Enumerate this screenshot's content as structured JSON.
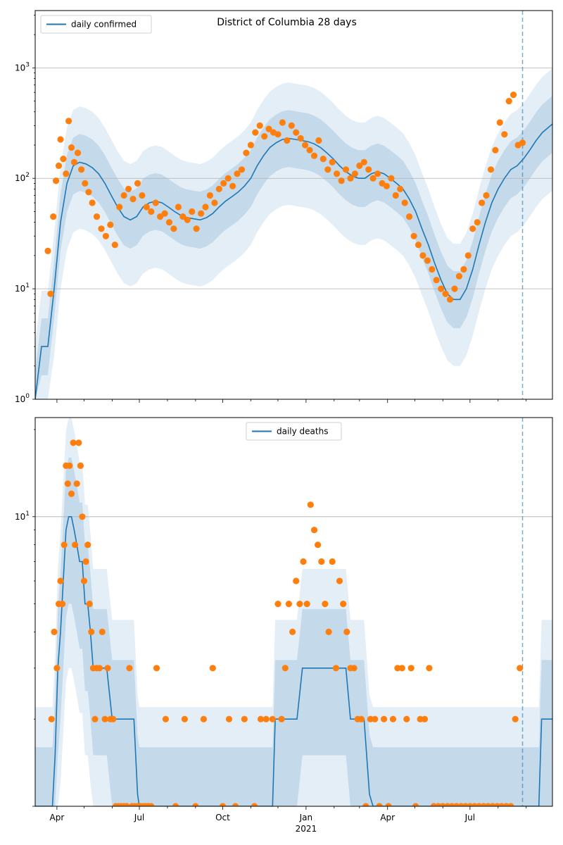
{
  "colors": {
    "line": "#1f77b4",
    "points": "#ff7f0e",
    "band": "#1f77b4",
    "grid": "#b0b0b0",
    "vline": "#1f77b4"
  },
  "chart_data": [
    {
      "type": "line",
      "title": "District of Columbia 28 days",
      "legend_label": "daily confirmed",
      "legend_position": "top-left",
      "yscale": "log",
      "ylim": [
        1,
        3300
      ],
      "xlim": [
        "2020-03-08",
        "2021-09-30"
      ],
      "y_ticks": [
        {
          "value": 1,
          "base": "10",
          "exp": "0"
        },
        {
          "value": 10,
          "base": "10",
          "exp": "1"
        },
        {
          "value": 100,
          "base": "10",
          "exp": "2"
        },
        {
          "value": 1000,
          "base": "10",
          "exp": "3"
        }
      ],
      "grid": "y-major",
      "vline_date": "2021-08-28",
      "series_line": {
        "name": "daily confirmed",
        "x": [
          "2020-03-08",
          "2020-03-15",
          "2020-03-22",
          "2020-03-29",
          "2020-04-05",
          "2020-04-12",
          "2020-04-19",
          "2020-04-26",
          "2020-05-03",
          "2020-05-10",
          "2020-05-17",
          "2020-05-24",
          "2020-05-31",
          "2020-06-07",
          "2020-06-14",
          "2020-06-21",
          "2020-06-28",
          "2020-07-05",
          "2020-07-12",
          "2020-07-19",
          "2020-07-26",
          "2020-08-02",
          "2020-08-09",
          "2020-08-16",
          "2020-08-23",
          "2020-08-30",
          "2020-09-06",
          "2020-09-13",
          "2020-09-20",
          "2020-09-27",
          "2020-10-04",
          "2020-10-11",
          "2020-10-18",
          "2020-10-25",
          "2020-11-01",
          "2020-11-08",
          "2020-11-15",
          "2020-11-22",
          "2020-11-29",
          "2020-12-06",
          "2020-12-13",
          "2020-12-20",
          "2020-12-27",
          "2021-01-03",
          "2021-01-10",
          "2021-01-17",
          "2021-01-24",
          "2021-01-31",
          "2021-02-07",
          "2021-02-14",
          "2021-02-21",
          "2021-02-28",
          "2021-03-07",
          "2021-03-14",
          "2021-03-21",
          "2021-03-28",
          "2021-04-04",
          "2021-04-11",
          "2021-04-18",
          "2021-04-25",
          "2021-05-02",
          "2021-05-09",
          "2021-05-16",
          "2021-05-23",
          "2021-05-30",
          "2021-06-06",
          "2021-06-13",
          "2021-06-20",
          "2021-06-27",
          "2021-07-04",
          "2021-07-11",
          "2021-07-18",
          "2021-07-25",
          "2021-08-01",
          "2021-08-08",
          "2021-08-15",
          "2021-08-22",
          "2021-08-29",
          "2021-09-05",
          "2021-09-12",
          "2021-09-19",
          "2021-09-30"
        ],
        "y": [
          1,
          3,
          3,
          10,
          40,
          90,
          130,
          140,
          135,
          125,
          110,
          90,
          70,
          55,
          45,
          42,
          45,
          55,
          60,
          62,
          60,
          55,
          50,
          46,
          44,
          43,
          42,
          44,
          48,
          55,
          62,
          68,
          75,
          85,
          100,
          130,
          160,
          190,
          210,
          225,
          230,
          225,
          220,
          215,
          205,
          190,
          170,
          150,
          130,
          115,
          105,
          100,
          100,
          110,
          115,
          110,
          100,
          90,
          80,
          65,
          50,
          35,
          25,
          17,
          12,
          9,
          8,
          8,
          10,
          15,
          25,
          40,
          60,
          80,
          100,
          120,
          130,
          150,
          180,
          220,
          260,
          310
        ]
      },
      "series_points": {
        "name": "observed daily confirmed",
        "x": [
          "2020-03-22",
          "2020-03-25",
          "2020-03-28",
          "2020-03-31",
          "2020-04-03",
          "2020-04-05",
          "2020-04-08",
          "2020-04-11",
          "2020-04-14",
          "2020-04-17",
          "2020-04-20",
          "2020-04-24",
          "2020-04-28",
          "2020-05-02",
          "2020-05-06",
          "2020-05-10",
          "2020-05-15",
          "2020-05-20",
          "2020-05-25",
          "2020-05-30",
          "2020-06-04",
          "2020-06-09",
          "2020-06-14",
          "2020-06-19",
          "2020-06-24",
          "2020-06-29",
          "2020-07-04",
          "2020-07-09",
          "2020-07-14",
          "2020-07-19",
          "2020-07-24",
          "2020-07-29",
          "2020-08-03",
          "2020-08-08",
          "2020-08-13",
          "2020-08-18",
          "2020-08-23",
          "2020-08-28",
          "2020-09-02",
          "2020-09-07",
          "2020-09-12",
          "2020-09-17",
          "2020-09-22",
          "2020-09-27",
          "2020-10-02",
          "2020-10-07",
          "2020-10-12",
          "2020-10-17",
          "2020-10-22",
          "2020-10-27",
          "2020-11-01",
          "2020-11-06",
          "2020-11-11",
          "2020-11-16",
          "2020-11-21",
          "2020-11-26",
          "2020-12-01",
          "2020-12-06",
          "2020-12-11",
          "2020-12-16",
          "2020-12-21",
          "2020-12-26",
          "2020-12-31",
          "2021-01-05",
          "2021-01-10",
          "2021-01-15",
          "2021-01-20",
          "2021-01-25",
          "2021-01-30",
          "2021-02-04",
          "2021-02-09",
          "2021-02-14",
          "2021-02-19",
          "2021-02-24",
          "2021-03-01",
          "2021-03-06",
          "2021-03-11",
          "2021-03-16",
          "2021-03-21",
          "2021-03-26",
          "2021-03-31",
          "2021-04-05",
          "2021-04-10",
          "2021-04-15",
          "2021-04-20",
          "2021-04-25",
          "2021-04-30",
          "2021-05-05",
          "2021-05-10",
          "2021-05-15",
          "2021-05-20",
          "2021-05-25",
          "2021-05-30",
          "2021-06-04",
          "2021-06-09",
          "2021-06-14",
          "2021-06-19",
          "2021-06-24",
          "2021-06-29",
          "2021-07-04",
          "2021-07-09",
          "2021-07-14",
          "2021-07-19",
          "2021-07-24",
          "2021-07-29",
          "2021-08-03",
          "2021-08-08",
          "2021-08-13",
          "2021-08-18",
          "2021-08-23",
          "2021-08-28"
        ],
        "y": [
          22,
          9,
          45,
          95,
          130,
          225,
          150,
          110,
          330,
          190,
          140,
          170,
          120,
          90,
          75,
          60,
          45,
          35,
          30,
          38,
          25,
          55,
          70,
          80,
          65,
          90,
          70,
          55,
          50,
          60,
          45,
          48,
          40,
          35,
          55,
          45,
          42,
          50,
          35,
          48,
          55,
          70,
          60,
          80,
          90,
          100,
          85,
          110,
          120,
          170,
          200,
          260,
          300,
          240,
          280,
          260,
          250,
          320,
          220,
          300,
          260,
          230,
          200,
          180,
          160,
          220,
          150,
          120,
          140,
          110,
          95,
          120,
          100,
          110,
          130,
          140,
          120,
          100,
          110,
          90,
          85,
          100,
          70,
          80,
          60,
          45,
          30,
          25,
          20,
          18,
          15,
          12,
          10,
          9,
          8,
          10,
          13,
          15,
          20,
          35,
          40,
          60,
          70,
          120,
          180,
          320,
          250,
          500,
          570,
          200,
          210
        ]
      },
      "band_mid": {
        "lower_factor": 0.55,
        "upper_factor": 1.8
      },
      "band_wide": {
        "lower_factor": 0.25,
        "upper_factor": 3.2
      }
    },
    {
      "type": "line",
      "title": "",
      "legend_label": "daily deaths",
      "legend_position": "top-center",
      "yscale": "log",
      "ylim": [
        1,
        22
      ],
      "xlim": [
        "2020-03-08",
        "2021-09-30"
      ],
      "y_ticks": [
        {
          "value": 10,
          "base": "10",
          "exp": "1"
        }
      ],
      "grid": "y-major",
      "vline_date": "2021-08-28",
      "x_ticks": [
        {
          "date": "2020-04-01",
          "label": "Apr"
        },
        {
          "date": "2020-07-01",
          "label": "Jul"
        },
        {
          "date": "2020-10-01",
          "label": "Oct"
        },
        {
          "date": "2021-01-01",
          "label": "Jan"
        },
        {
          "date": "2021-04-01",
          "label": "Apr"
        },
        {
          "date": "2021-07-01",
          "label": "Jul"
        }
      ],
      "x_year_label": {
        "date": "2021-01-01",
        "label": "2021"
      },
      "series_line": {
        "name": "daily deaths",
        "x": [
          "2020-03-08",
          "2020-03-24",
          "2020-03-27",
          "2020-03-30",
          "2020-04-02",
          "2020-04-05",
          "2020-04-08",
          "2020-04-11",
          "2020-04-14",
          "2020-04-17",
          "2020-04-20",
          "2020-04-23",
          "2020-04-26",
          "2020-04-29",
          "2020-05-02",
          "2020-05-05",
          "2020-05-08",
          "2020-05-11",
          "2020-05-14",
          "2020-05-17",
          "2020-05-20",
          "2020-05-23",
          "2020-05-26",
          "2020-06-01",
          "2020-06-05",
          "2020-06-10",
          "2020-06-15",
          "2020-06-20",
          "2020-06-25",
          "2020-06-29",
          "2020-07-01",
          "2020-11-25",
          "2020-11-28",
          "2020-12-02",
          "2020-12-06",
          "2020-12-10",
          "2020-12-14",
          "2020-12-18",
          "2020-12-22",
          "2020-12-28",
          "2021-01-02",
          "2021-01-06",
          "2021-01-10",
          "2021-01-15",
          "2021-01-20",
          "2021-01-25",
          "2021-01-30",
          "2021-02-04",
          "2021-02-09",
          "2021-02-14",
          "2021-02-19",
          "2021-02-24",
          "2021-03-01",
          "2021-03-06",
          "2021-03-12",
          "2021-03-16",
          "2021-08-28",
          "2021-09-15",
          "2021-09-18",
          "2021-09-30"
        ],
        "y": [
          1,
          1,
          1,
          1.5,
          3,
          4,
          6,
          9,
          10,
          10,
          9,
          8,
          7,
          7,
          5,
          5,
          4,
          3,
          3,
          3,
          3,
          3,
          3,
          2,
          2,
          2,
          2,
          2,
          2,
          1.1,
          1,
          1,
          2,
          2,
          2,
          2,
          2,
          2,
          2,
          3,
          3,
          3,
          3,
          3,
          3,
          3,
          3,
          3,
          3,
          3,
          2,
          2,
          2,
          2,
          1.1,
          1,
          1,
          1,
          2,
          2
        ]
      },
      "series_points": {
        "name": "observed daily deaths",
        "x": [
          "2020-03-26",
          "2020-03-29",
          "2020-04-01",
          "2020-04-03",
          "2020-04-05",
          "2020-04-07",
          "2020-04-09",
          "2020-04-11",
          "2020-04-13",
          "2020-04-15",
          "2020-04-17",
          "2020-04-19",
          "2020-04-21",
          "2020-04-23",
          "2020-04-25",
          "2020-04-27",
          "2020-04-29",
          "2020-05-01",
          "2020-05-03",
          "2020-05-05",
          "2020-05-07",
          "2020-05-09",
          "2020-05-11",
          "2020-05-13",
          "2020-05-15",
          "2020-05-18",
          "2020-05-21",
          "2020-05-24",
          "2020-05-27",
          "2020-05-30",
          "2020-06-02",
          "2020-06-05",
          "2020-06-08",
          "2020-06-11",
          "2020-06-14",
          "2020-06-17",
          "2020-06-20",
          "2020-06-23",
          "2020-06-26",
          "2020-06-29",
          "2020-07-02",
          "2020-07-05",
          "2020-07-08",
          "2020-07-11",
          "2020-07-14",
          "2020-07-20",
          "2020-07-30",
          "2020-08-10",
          "2020-08-20",
          "2020-09-01",
          "2020-09-10",
          "2020-09-20",
          "2020-10-01",
          "2020-10-08",
          "2020-10-15",
          "2020-10-25",
          "2020-11-05",
          "2020-11-12",
          "2020-11-18",
          "2020-11-25",
          "2020-12-01",
          "2020-12-05",
          "2020-12-09",
          "2020-12-13",
          "2020-12-17",
          "2020-12-21",
          "2020-12-25",
          "2020-12-29",
          "2021-01-02",
          "2021-01-06",
          "2021-01-10",
          "2021-01-14",
          "2021-01-18",
          "2021-01-22",
          "2021-01-26",
          "2021-01-30",
          "2021-02-03",
          "2021-02-07",
          "2021-02-11",
          "2021-02-15",
          "2021-02-19",
          "2021-02-23",
          "2021-02-27",
          "2021-03-03",
          "2021-03-08",
          "2021-03-13",
          "2021-03-18",
          "2021-03-23",
          "2021-03-28",
          "2021-04-02",
          "2021-04-07",
          "2021-04-12",
          "2021-04-17",
          "2021-04-22",
          "2021-04-27",
          "2021-05-02",
          "2021-05-07",
          "2021-05-12",
          "2021-05-17",
          "2021-05-22",
          "2021-05-27",
          "2021-06-01",
          "2021-06-06",
          "2021-06-11",
          "2021-06-16",
          "2021-06-21",
          "2021-06-26",
          "2021-07-01",
          "2021-07-06",
          "2021-07-11",
          "2021-07-16",
          "2021-07-21",
          "2021-07-26",
          "2021-07-31",
          "2021-08-05",
          "2021-08-10",
          "2021-08-15",
          "2021-08-20",
          "2021-08-25"
        ],
        "y": [
          2,
          4,
          3,
          5,
          6,
          5,
          8,
          15,
          13,
          15,
          12,
          18,
          8,
          13,
          18,
          15,
          10,
          6,
          7,
          8,
          5,
          4,
          3,
          2,
          3,
          3,
          4,
          2,
          3,
          2,
          2,
          1,
          1,
          1,
          1,
          1,
          3,
          1,
          1,
          1,
          1,
          1,
          1,
          1,
          1,
          3,
          2,
          1,
          2,
          1,
          2,
          3,
          1,
          2,
          1,
          2,
          1,
          2,
          2,
          2,
          5,
          2,
          3,
          5,
          4,
          6,
          5,
          7,
          5,
          11,
          9,
          8,
          7,
          5,
          4,
          7,
          3,
          6,
          5,
          4,
          3,
          3,
          2,
          2,
          1,
          2,
          2,
          1,
          2,
          1,
          2,
          3,
          3,
          2,
          3,
          1,
          2,
          2,
          3,
          1,
          1,
          1,
          1,
          1,
          1,
          1,
          1,
          1,
          1,
          1,
          1,
          1,
          1,
          1,
          1,
          1,
          1,
          2,
          3
        ]
      },
      "band_mid": {
        "lower_factor": 0.5,
        "upper_factor": 1.6
      },
      "band_wide": {
        "lower_factor": 0.3,
        "upper_factor": 2.2
      }
    }
  ]
}
